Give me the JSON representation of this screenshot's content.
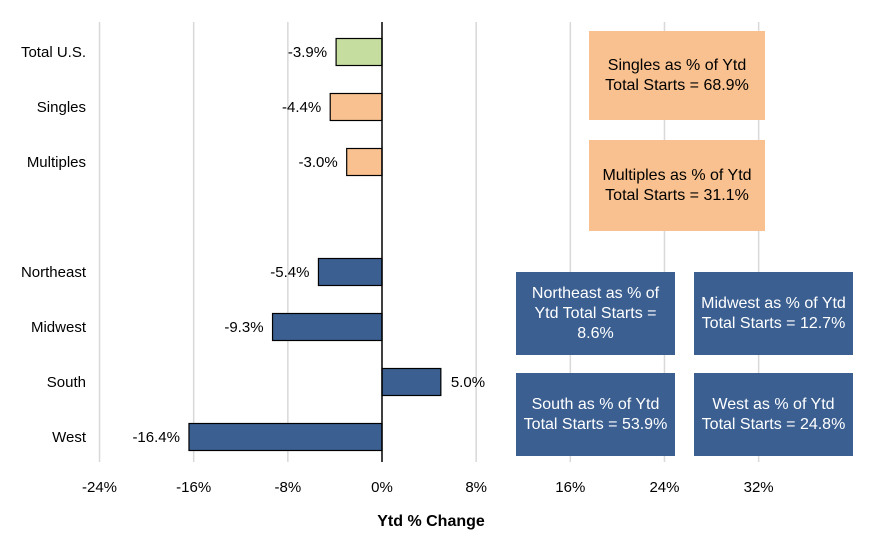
{
  "chart_data": {
    "type": "bar",
    "orientation": "horizontal",
    "title": "",
    "xlabel": "Ytd % Change",
    "ylabel": "",
    "xlim": [
      -24,
      40
    ],
    "xticks": [
      -24,
      -16,
      -8,
      0,
      8,
      16,
      24,
      32
    ],
    "xtick_labels": [
      "-24%",
      "-16%",
      "-8%",
      "0%",
      "8%",
      "16%",
      "24%",
      "32%"
    ],
    "grid": true,
    "colors": {
      "total": "#c5dea0",
      "type": "#f9c18f",
      "region": "#3b5f91"
    },
    "categories": [
      {
        "name": "Total U.S.",
        "value": -3.9,
        "label": "-3.9%",
        "group": "total"
      },
      {
        "name": "Singles",
        "value": -4.4,
        "label": "-4.4%",
        "group": "type"
      },
      {
        "name": "Multiples",
        "value": -3.0,
        "label": "-3.0%",
        "group": "type"
      },
      {
        "name": "Northeast",
        "value": -5.4,
        "label": "-5.4%",
        "group": "region"
      },
      {
        "name": "Midwest",
        "value": -9.3,
        "label": "-9.3%",
        "group": "region"
      },
      {
        "name": "South",
        "value": 5.0,
        "label": "5.0%",
        "group": "region"
      },
      {
        "name": "West",
        "value": -16.4,
        "label": "-16.4%",
        "group": "region"
      }
    ],
    "annotations": [
      {
        "id": "singles",
        "text": "Singles as % of Ytd Total Starts = 68.9%",
        "style": "orange"
      },
      {
        "id": "multiples",
        "text": "Multiples as % of Ytd Total Starts = 31.1%",
        "style": "orange"
      },
      {
        "id": "northeast",
        "text": "Northeast as % of Ytd Total Starts = 8.6%",
        "style": "blue"
      },
      {
        "id": "midwest",
        "text": "Midwest as % of Ytd Total Starts = 12.7%",
        "style": "blue"
      },
      {
        "id": "south",
        "text": "South as % of Ytd Total Starts = 53.9%",
        "style": "blue"
      },
      {
        "id": "west",
        "text": "West as % of Ytd Total Starts = 24.8%",
        "style": "blue"
      }
    ]
  }
}
